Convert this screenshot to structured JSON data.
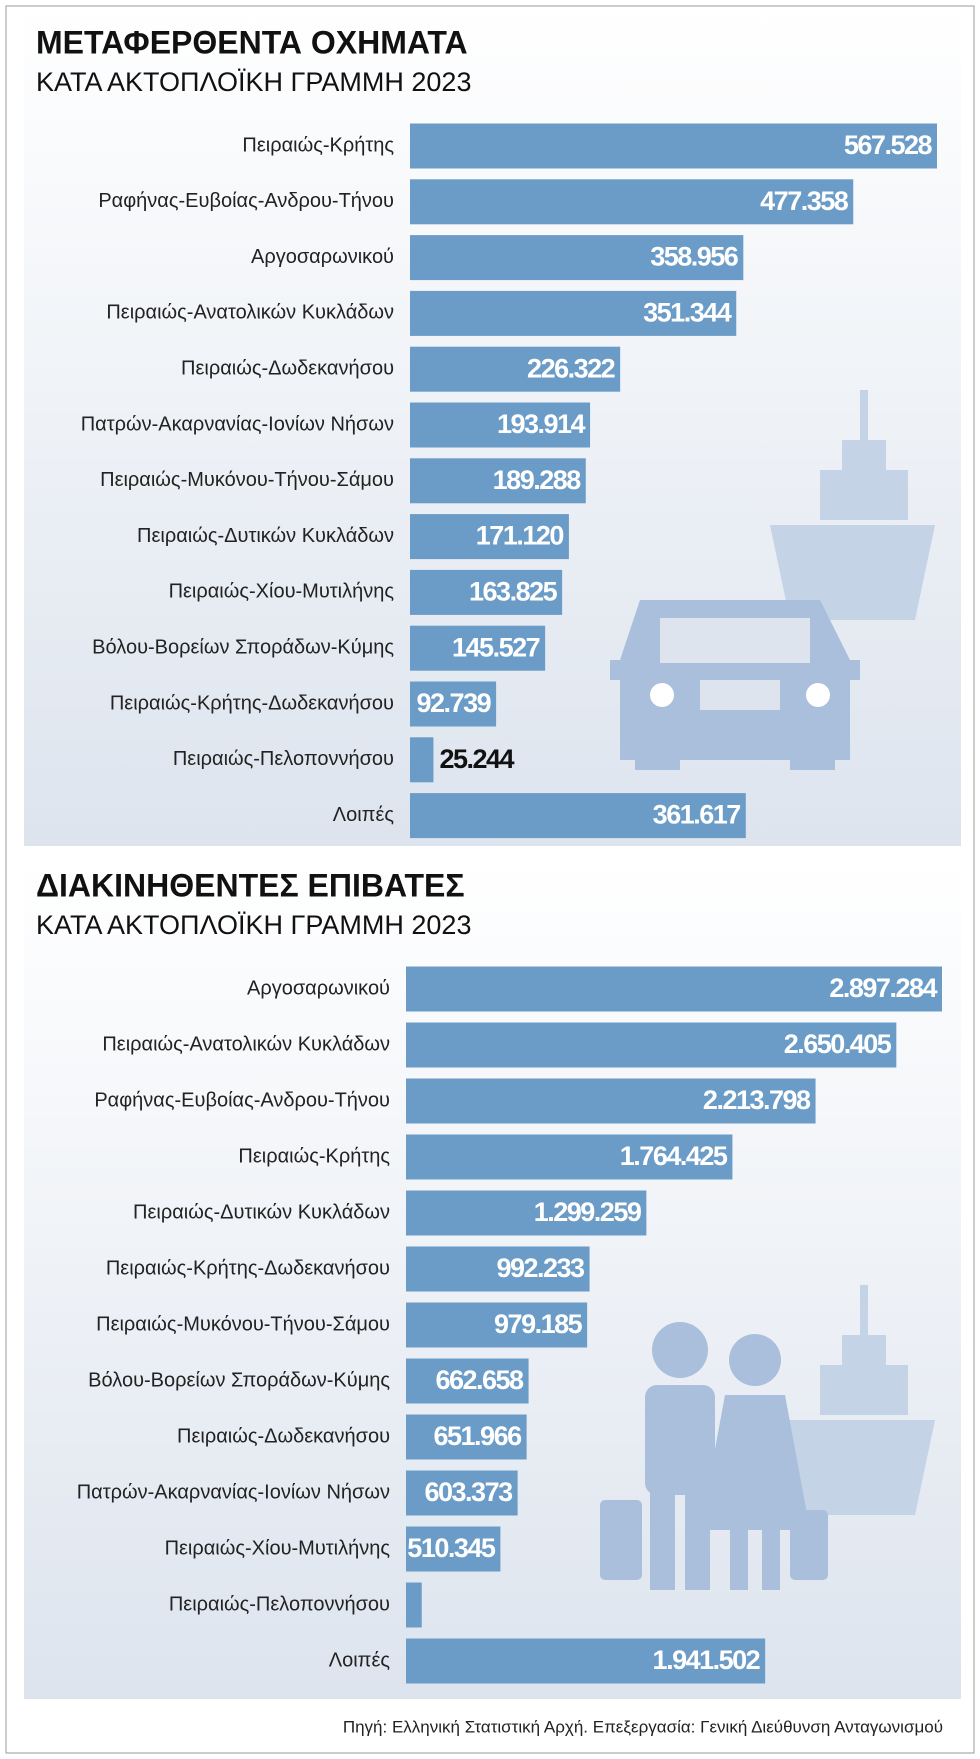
{
  "chart_data": [
    {
      "type": "bar",
      "orientation": "horizontal",
      "title": "ΜΕΤΑΦΕΡΘΕΝΤΑ ΟΧΗΜΑΤΑ",
      "subtitle": "ΚΑΤΑ ΑΚΤΟΠΛΟΪΚΗ ΓΡΑΜΜΗ 2023",
      "categories": [
        "Πειραιώς-Κρήτης",
        "Ραφήνας-Ευβοίας-Ανδρου-Τήνου",
        "Αργοσαρωνικού",
        "Πειραιώς-Ανατολικών Κυκλάδων",
        "Πειραιώς-Δωδεκανήσου",
        "Πατρών-Ακαρνανίας-Ιονίων Νήσων",
        "Πειραιώς-Μυκόνου-Τήνου-Σάμου",
        "Πειραιώς-Δυτικών Κυκλάδων",
        "Πειραιώς-Χίου-Μυτιλήνης",
        "Βόλου-Βορείων Σποράδων-Κύμης",
        "Πειραιώς-Κρήτης-Δωδεκανήσου",
        "Πειραιώς-Πελοποννήσου",
        "Λοιπές"
      ],
      "values": [
        567528,
        477358,
        358956,
        351344,
        226322,
        193914,
        189288,
        171120,
        163825,
        145527,
        92739,
        25244,
        361617
      ],
      "value_labels": [
        "567.528",
        "477.358",
        "358.956",
        "351.344",
        "226.322",
        "193.914",
        "189.288",
        "171.120",
        "163.825",
        "145.527",
        "92.739",
        "25.244",
        "361.617"
      ],
      "color": "#6b9cc8"
    },
    {
      "type": "bar",
      "orientation": "horizontal",
      "title": "ΔΙΑΚΙΝΗΘΕΝΤΕΣ ΕΠΙΒΑΤΕΣ",
      "subtitle": "ΚΑΤΑ ΑΚΤΟΠΛΟΪΚΗ ΓΡΑΜΜΗ 2023",
      "categories": [
        "Αργοσαρωνικού",
        "Πειραιώς-Ανατολικών Κυκλάδων",
        "Ραφήνας-Ευβοίας-Ανδρου-Τήνου",
        "Πειραιώς-Κρήτης",
        "Πειραιώς-Δυτικών Κυκλάδων",
        "Πειραιώς-Κρήτης-Δωδεκανήσου",
        "Πειραιώς-Μυκόνου-Τήνου-Σάμου",
        "Βόλου-Βορείων Σποράδων-Κύμης",
        "Πειραιώς-Δωδεκανήσου",
        "Πατρών-Ακαρνανίας-Ιονίων Νήσων",
        "Πειραιώς-Χίου-Μυτιλήνης",
        "Πειραιώς-Πελοποννήσου",
        "Λοιπές"
      ],
      "values": [
        2897284,
        2650405,
        2213798,
        1764425,
        1299259,
        992233,
        979185,
        662658,
        651966,
        603373,
        510345,
        85000,
        1941502
      ],
      "value_labels": [
        "2.897.284",
        "2.650.405",
        "2.213.798",
        "1.764.425",
        "1.299.259",
        "992.233",
        "979.185",
        "662.658",
        "651.966",
        "603.373",
        "510.345",
        null,
        "1.941.502"
      ],
      "color": "#6b9cc8"
    }
  ],
  "source": "Πηγή: Ελληνική Στατιστική Αρχή. Επεξεργασία: Γενική Διεύθυνση Ανταγωνισμού"
}
